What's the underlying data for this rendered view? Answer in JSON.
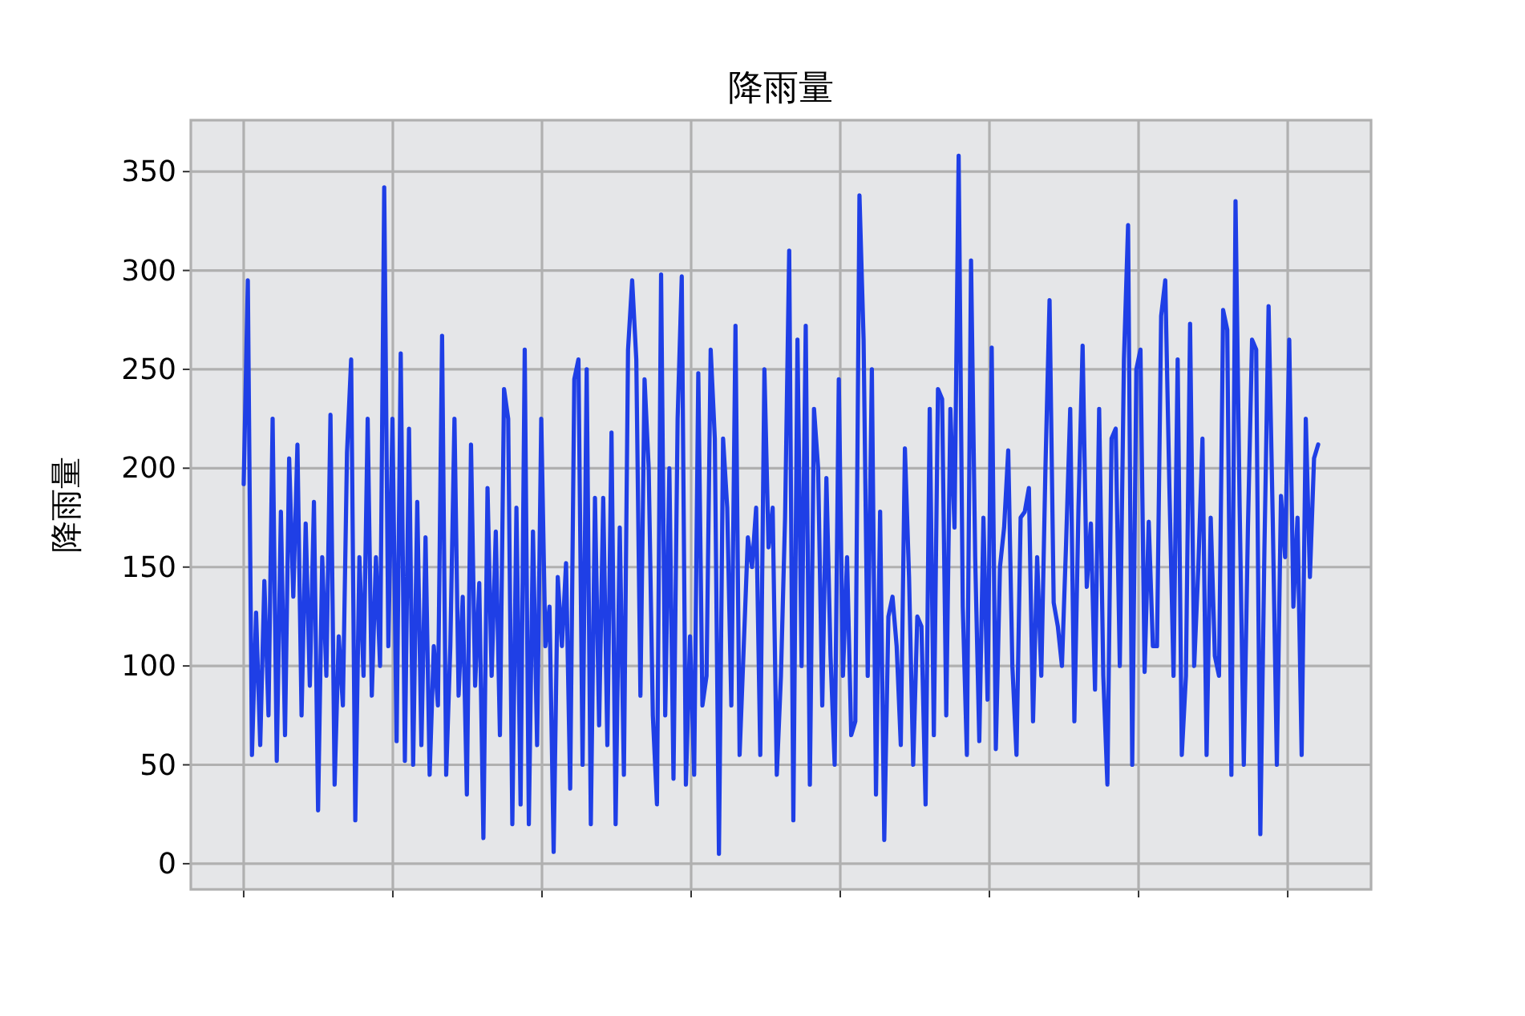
{
  "chart_data": {
    "type": "line",
    "title": "降雨量",
    "ylabel": "降雨量",
    "color": "#1f3fe6",
    "categories": [
      null,
      null,
      null,
      null,
      null,
      null,
      null,
      null,
      null,
      null,
      null,
      null,
      null,
      null,
      null,
      null,
      null,
      null,
      null,
      null,
      null,
      null,
      null,
      null,
      null,
      null,
      null,
      null,
      null,
      null,
      null,
      null,
      null,
      null,
      null,
      null,
      null,
      null,
      null,
      null,
      null,
      null,
      null,
      null,
      null,
      null,
      null,
      null,
      null,
      null,
      null,
      null,
      null,
      null,
      null,
      null,
      null,
      null,
      null,
      null,
      null,
      null,
      null,
      null,
      null,
      null,
      null,
      null,
      null,
      null,
      null,
      null,
      null,
      null,
      null,
      null,
      null,
      null,
      null,
      null,
      null,
      null,
      null,
      null,
      null,
      null,
      null,
      null,
      null,
      null,
      null,
      null,
      null,
      null,
      null,
      null,
      null,
      null,
      null,
      null,
      null,
      null,
      null,
      null,
      null,
      null,
      null,
      null,
      null,
      null,
      null,
      null,
      null,
      null,
      null,
      null,
      null,
      null,
      null,
      null,
      null,
      null,
      null,
      null,
      null,
      null,
      null,
      null,
      null,
      null,
      null,
      null,
      null,
      null,
      null,
      null,
      null,
      null,
      null,
      null,
      null,
      null,
      null,
      null,
      null,
      null,
      null,
      null,
      null,
      null,
      null,
      null,
      null,
      null,
      null,
      null,
      null,
      null,
      null,
      null,
      null,
      null,
      null,
      null,
      null,
      null,
      null,
      null,
      null,
      null,
      null,
      null,
      null,
      null,
      null,
      null,
      null,
      null,
      null,
      null,
      null,
      null,
      null,
      null,
      null,
      null,
      null,
      null,
      null,
      null,
      null,
      null,
      null,
      null,
      null,
      null,
      null,
      null,
      null,
      null,
      null,
      null,
      null,
      null,
      null,
      null,
      null,
      null,
      null,
      null,
      null,
      null,
      null,
      null,
      null,
      null,
      null,
      null,
      null,
      null,
      null,
      null,
      null,
      null,
      null,
      null,
      null,
      null,
      null,
      null,
      null,
      null,
      null,
      null,
      null,
      null,
      null,
      null,
      null,
      null,
      null,
      null,
      null,
      null,
      null,
      null,
      null,
      null,
      null,
      null,
      null,
      null,
      null,
      null,
      null,
      null,
      null,
      null,
      null,
      null,
      null
    ],
    "values": [
      192,
      295,
      55,
      127,
      60,
      143,
      75,
      225,
      52,
      178,
      65,
      205,
      135,
      212,
      75,
      172,
      90,
      183,
      27,
      155,
      95,
      227,
      40,
      115,
      80,
      208,
      255,
      22,
      155,
      95,
      225,
      85,
      155,
      100,
      342,
      110,
      225,
      62,
      258,
      52,
      220,
      50,
      183,
      60,
      165,
      45,
      110,
      80,
      267,
      45,
      110,
      225,
      85,
      135,
      35,
      212,
      90,
      142,
      13,
      190,
      95,
      168,
      65,
      240,
      225,
      20,
      180,
      30,
      260,
      20,
      168,
      60,
      225,
      110,
      130,
      6,
      145,
      110,
      152,
      38,
      245,
      255,
      50,
      250,
      20,
      185,
      70,
      185,
      60,
      218,
      20,
      170,
      45,
      260,
      295,
      255,
      85,
      245,
      200,
      75,
      30,
      298,
      75,
      200,
      43,
      225,
      297,
      40,
      115,
      45,
      248,
      80,
      95,
      260,
      215,
      5,
      215,
      180,
      80,
      272,
      55,
      110,
      165,
      150,
      180,
      55,
      250,
      160,
      180,
      45,
      95,
      175,
      310,
      22,
      265,
      100,
      272,
      40,
      230,
      200,
      80,
      195,
      105,
      50,
      245,
      95,
      155,
      65,
      72,
      338,
      265,
      95,
      250,
      35,
      178,
      12,
      125,
      135,
      110,
      60,
      210,
      145,
      50,
      125,
      120,
      30,
      230,
      65,
      240,
      235,
      75,
      230,
      170,
      358,
      130,
      55,
      305,
      155,
      62,
      175,
      83,
      261,
      58,
      150,
      170,
      209,
      100,
      55,
      175,
      178,
      190,
      72,
      155,
      95,
      200,
      285,
      132,
      120,
      100,
      162,
      230,
      72,
      180,
      262,
      140,
      172,
      88,
      230,
      95,
      40,
      215,
      220,
      100,
      255,
      323,
      50,
      250,
      260,
      97,
      173,
      110,
      110,
      277,
      295,
      190,
      95,
      255,
      55,
      95,
      273,
      100,
      150,
      215,
      55,
      175,
      105,
      95,
      280,
      270,
      45,
      335,
      180,
      50,
      170,
      265,
      260,
      15,
      160,
      282,
      175,
      50,
      186,
      155,
      265,
      130,
      175,
      55,
      225,
      145,
      205,
      212
    ],
    "ylim": [
      -13,
      376
    ],
    "yticks": [
      0,
      50,
      100,
      150,
      200,
      250,
      300,
      350
    ],
    "grid": true
  }
}
